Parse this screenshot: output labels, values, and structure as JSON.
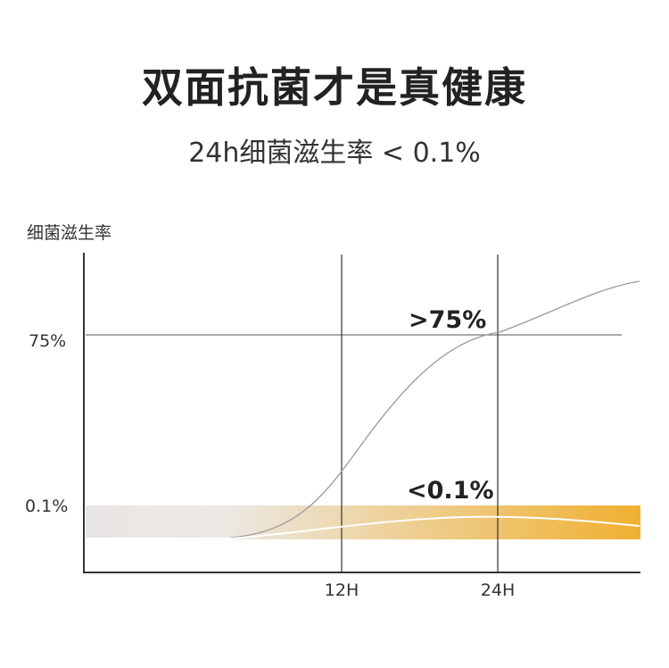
{
  "title": "双面抗菌才是真健康",
  "subtitle": "24h细菌滋生率 < 0.1%",
  "chart_data": {
    "type": "line",
    "ylabel": "细菌滋生率",
    "xlabel": "",
    "x_ticks": [
      {
        "label": "12H",
        "value": 12
      },
      {
        "label": "24H",
        "value": 24
      }
    ],
    "y_ticks": [
      {
        "label": "75%",
        "value": 75
      },
      {
        "label": "0.1%",
        "value": 0.1
      }
    ],
    "annotations": [
      {
        "text": ">75%",
        "series": "upper",
        "x": 24
      },
      {
        "text": "<0.1%",
        "series": "lower",
        "x": 24
      }
    ],
    "grid": false,
    "colors": {
      "band_start": "#e8e6e4",
      "band_end": "#f0b030",
      "upper_line": "#999999",
      "lower_line": "#ffffff",
      "axis": "#333333"
    }
  }
}
